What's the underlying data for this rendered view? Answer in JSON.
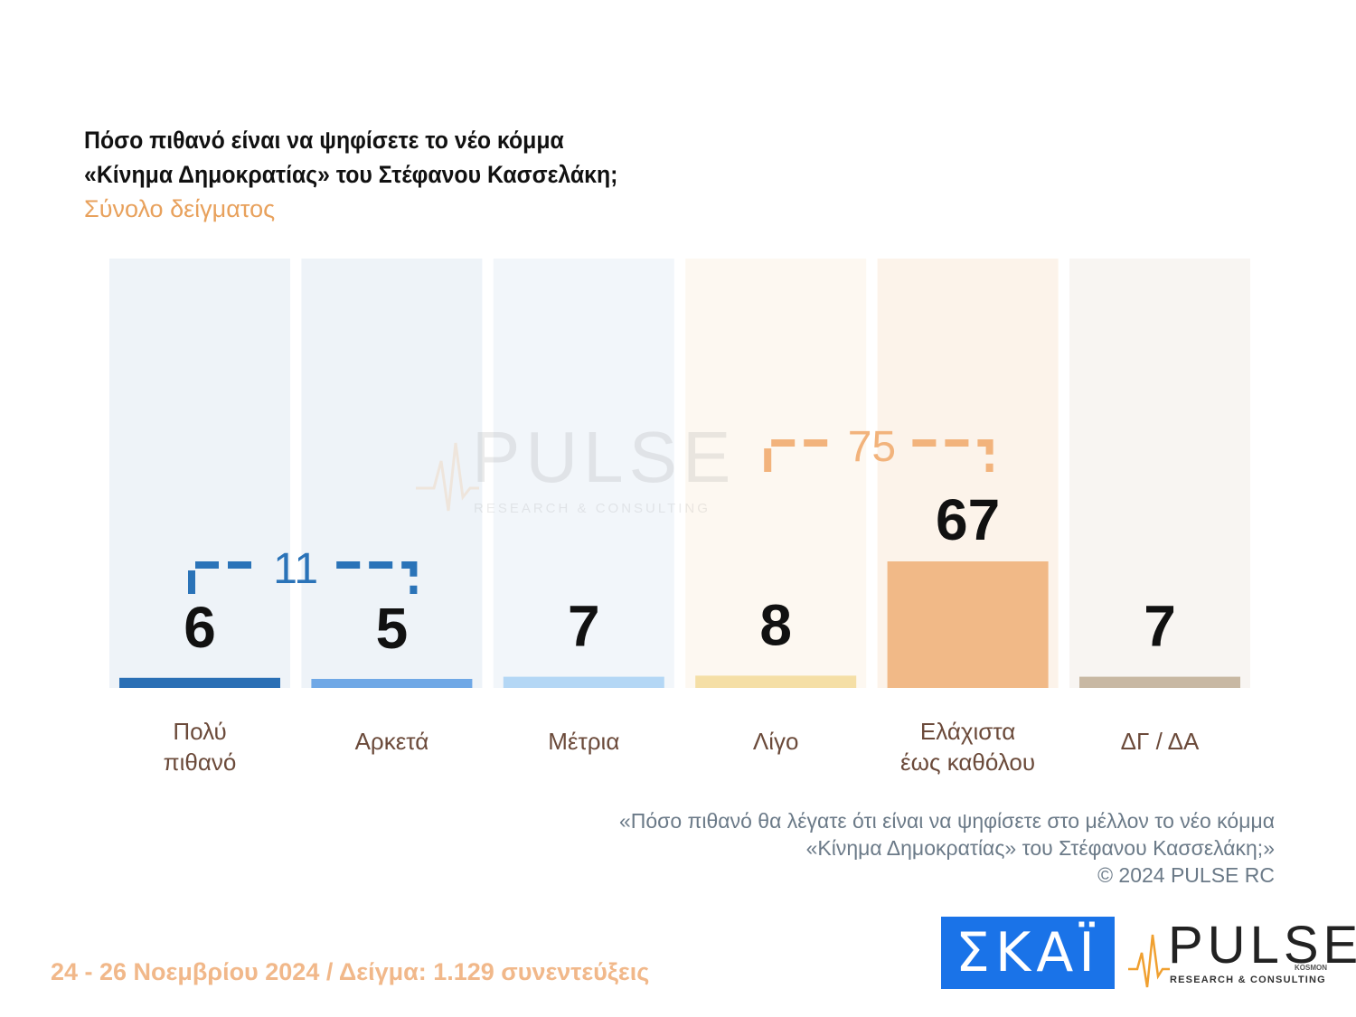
{
  "header": {
    "title_line1": "Πόσο πιθανό είναι να ψηφίσετε το νέο κόμμα",
    "title_line2": "«Κίνημα Δημοκρατίας» του Στέφανου Κασσελάκη;",
    "subtitle": "Σύνολο δείγματος"
  },
  "chart_data": {
    "type": "bar",
    "categories": [
      [
        "Πολύ",
        "πιθανό"
      ],
      [
        "Αρκετά"
      ],
      [
        "Μέτρια"
      ],
      [
        "Λίγο"
      ],
      [
        "Ελάχιστα",
        "έως καθόλου"
      ],
      [
        "ΔΓ / ΔΑ"
      ]
    ],
    "values": [
      6,
      5,
      7,
      8,
      67,
      7
    ],
    "bar_colors": [
      "#2a6fb5",
      "#6fa8e6",
      "#b4d7f5",
      "#f5dfa6",
      "#f1b987",
      "#c8b8a3"
    ],
    "column_bg": [
      "#eef3f8",
      "#eef3f8",
      "#f2f6fa",
      "#fdf8f1",
      "#fcf3ea",
      "#f8f5f2"
    ],
    "groups": [
      {
        "label": "11",
        "from": 0,
        "to": 1,
        "color": "#2a73b8"
      },
      {
        "label": "75",
        "from": 3,
        "to": 4,
        "color": "#f2b37c"
      }
    ],
    "ylim": [
      0,
      100
    ]
  },
  "watermark": {
    "name": "PULSE",
    "sub": "RESEARCH & CONSULTING"
  },
  "footnote": {
    "line1": "«Πόσο πιθανό θα λέγατε ότι είναι να ψηφίσετε στο μέλλον το νέο κόμμα",
    "line2": "«Κίνημα Δημοκρατίας» του Στέφανου Κασσελάκη;»",
    "line3": "©  2024  PULSE RC"
  },
  "footer": {
    "date_sample": "24 - 26 Νοεμβρίου 2024  /  Δείγμα:  1.129 συνεντεύξεις"
  },
  "logos": {
    "skai": "ΣΚΑΪ",
    "pulse": "PULSE",
    "pulse_sub": "RESEARCH & CONSULTING",
    "pulse_kosmon": "KOSMON"
  }
}
